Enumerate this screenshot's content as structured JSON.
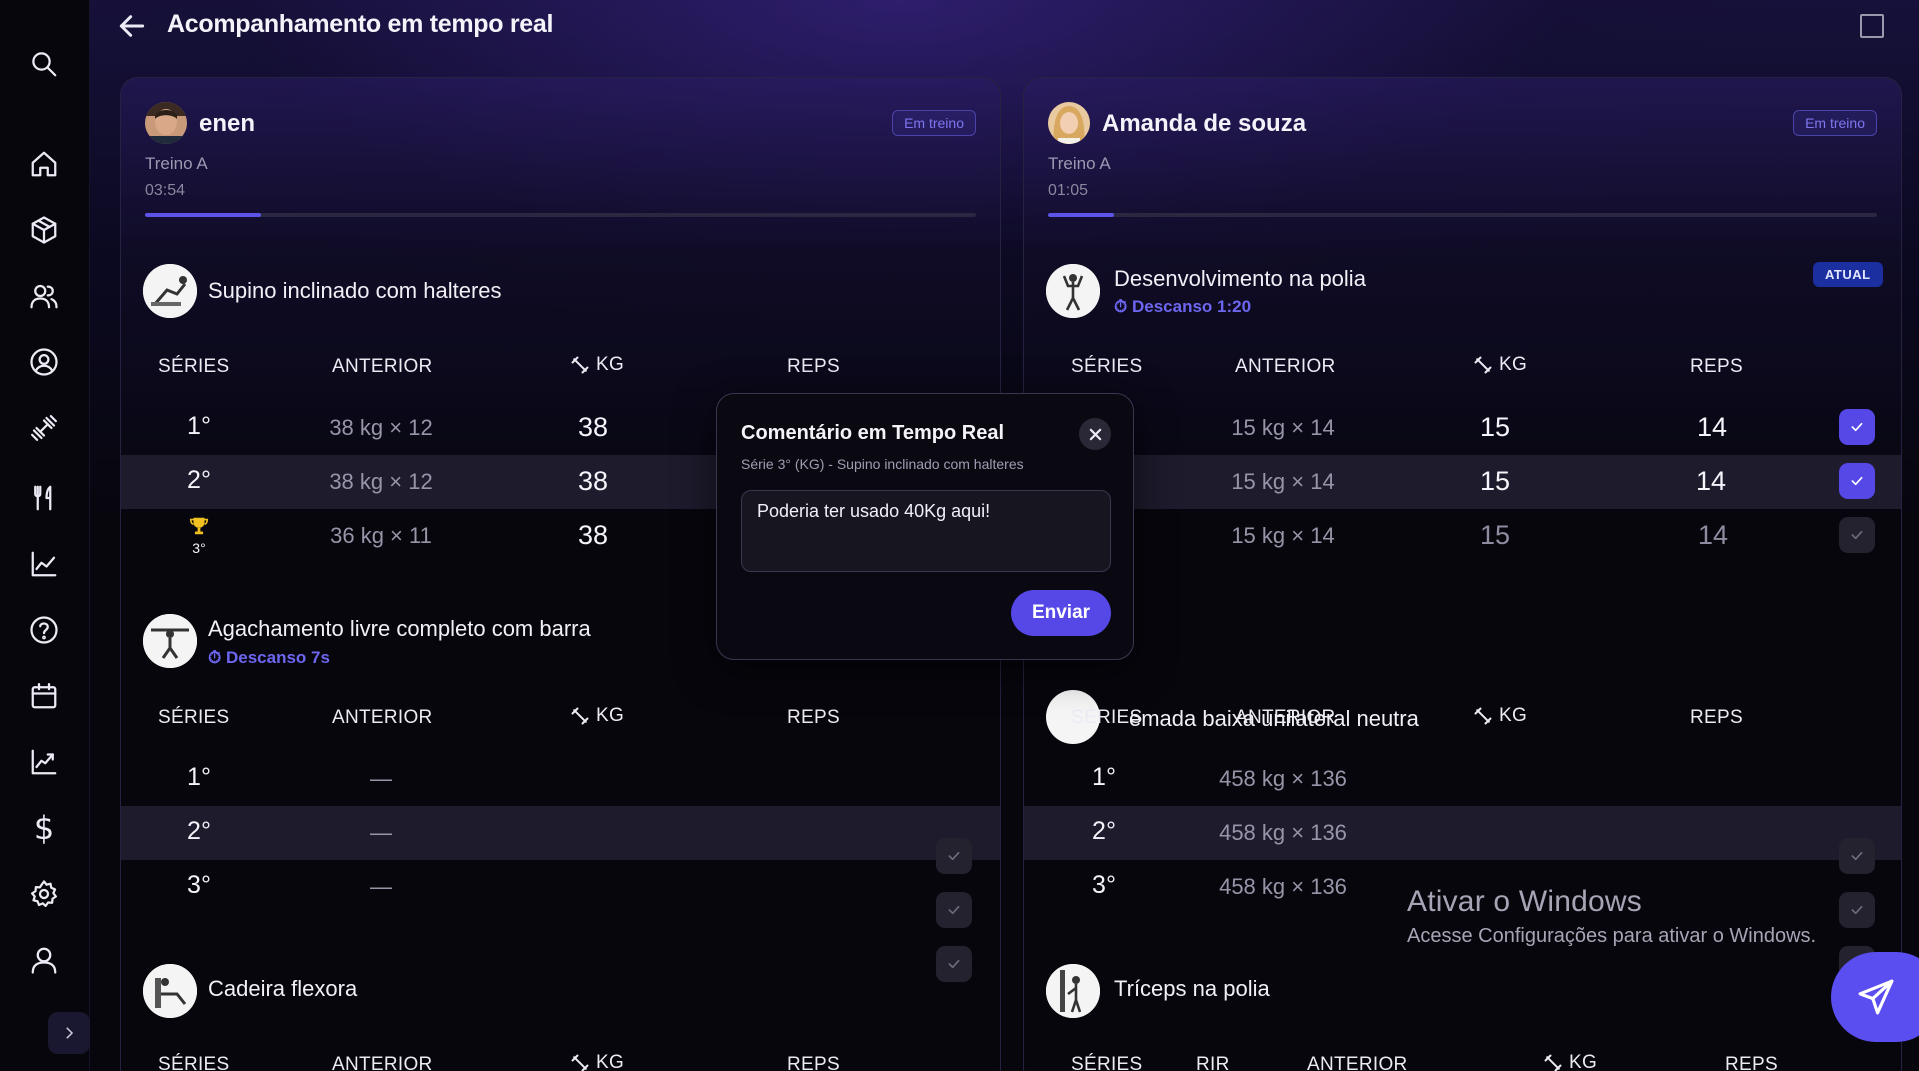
{
  "header": {
    "title": "Acompanhamento em tempo real"
  },
  "sidebar": {
    "icons": [
      "search-icon",
      "home-icon",
      "box-icon",
      "users-icon",
      "user-circle-icon",
      "dumbbell-icon",
      "fork-knife-icon",
      "line-chart-icon",
      "help-icon",
      "calendar-icon",
      "trend-chart-icon",
      "dollar-icon",
      "gear-icon",
      "profile-icon"
    ],
    "dollar_glyph": "$"
  },
  "columns": {
    "series": "SÉRIES",
    "previous": "ANTERIOR",
    "kg": "KG",
    "reps": "REPS",
    "rir": "RIR"
  },
  "left": {
    "user": "enen",
    "status": "Em treino",
    "workout": "Treino A",
    "timer": "03:54",
    "progress": 0.14,
    "exercises": [
      {
        "name": "Supino inclinado com halteres",
        "sets": [
          {
            "num": "1°",
            "previous": "38 kg × 12",
            "kg": "38"
          },
          {
            "num": "2°",
            "previous": "38 kg × 12",
            "kg": "38"
          },
          {
            "num": "3°",
            "previous": "36 kg × 11",
            "kg": "38"
          }
        ]
      },
      {
        "name": "Agachamento livre completo com barra",
        "rest": "Descanso 7s",
        "sets": [
          {
            "num": "1°",
            "previous": "—"
          },
          {
            "num": "2°",
            "previous": "—"
          },
          {
            "num": "3°",
            "previous": "—"
          }
        ]
      },
      {
        "name": "Cadeira flexora"
      }
    ]
  },
  "right": {
    "user": "Amanda de souza",
    "status": "Em treino",
    "workout": "Treino A",
    "timer": "01:05",
    "progress": 0.08,
    "exercises": [
      {
        "name": "Desenvolvimento na polia",
        "rest": "Descanso 1:20",
        "badge": "ATUAL",
        "sets": [
          {
            "previous": "15 kg × 14",
            "kg": "15",
            "reps": "14"
          },
          {
            "previous": "15 kg × 14",
            "kg": "15",
            "reps": "14"
          },
          {
            "previous": "15 kg × 14",
            "kg": "15",
            "reps": "14"
          }
        ]
      },
      {
        "name": "emada baixa unilateral neutra",
        "sets": [
          {
            "num": "1°",
            "previous": "458 kg × 136"
          },
          {
            "num": "2°",
            "previous": "458 kg × 136"
          },
          {
            "num": "3°",
            "previous": "458 kg × 136"
          }
        ]
      },
      {
        "name": "Tríceps na polia"
      }
    ]
  },
  "modal": {
    "title": "Comentário em Tempo Real",
    "subtitle": "Série 3° (KG) - Supino inclinado com halteres",
    "comment": "Poderia ter usado 40Kg aqui!",
    "send_label": "Enviar"
  },
  "watermark": {
    "line1": "Ativar o Windows",
    "line2": "Acesse Configurações para ativar o Windows."
  },
  "colors": {
    "accent": "#5548e6",
    "badge_text": "#7e76ee",
    "current_badge": "#1c2fa0"
  }
}
